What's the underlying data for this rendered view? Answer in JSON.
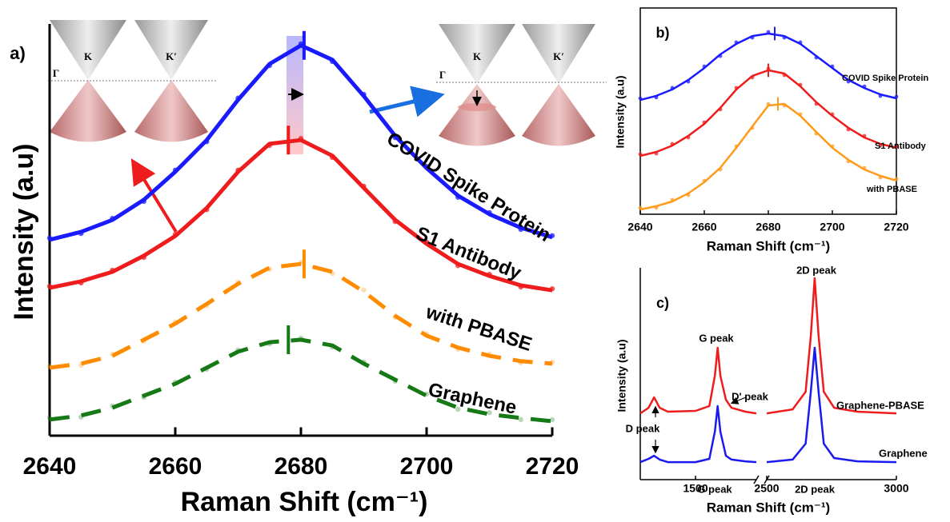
{
  "chart_data": [
    {
      "type": "line",
      "panel_label": "a)",
      "x_label": "Raman Shift (cm⁻¹)",
      "y_label": "Intensity (a.u)",
      "xlim": [
        2640,
        2720
      ],
      "xticks": [
        2640,
        2660,
        2680,
        2700,
        2720
      ],
      "ylim": [
        0,
        10
      ],
      "markers": true,
      "inset_labels": [
        "K",
        "K′",
        "Γ"
      ],
      "x": [
        2640,
        2645,
        2650,
        2655,
        2660,
        2665,
        2670,
        2675,
        2680,
        2685,
        2690,
        2695,
        2700,
        2705,
        2710,
        2715,
        2720
      ],
      "series": [
        {
          "name": "COVID Spike Protein",
          "color": "#1a1aff",
          "line_style": "solid",
          "peak": 2680.5,
          "values": [
            4.76,
            4.95,
            5.24,
            5.73,
            6.41,
            7.18,
            8.16,
            9.03,
            9.48,
            9.13,
            8.25,
            7.28,
            6.5,
            5.83,
            5.38,
            5.05,
            4.82
          ]
        },
        {
          "name": "S1 Antibody",
          "color": "#ee1c1c",
          "line_style": "solid",
          "peak": 2678,
          "values": [
            3.59,
            3.75,
            3.98,
            4.37,
            4.85,
            5.53,
            6.41,
            7.09,
            7.18,
            6.8,
            6.02,
            5.24,
            4.66,
            4.17,
            3.88,
            3.65,
            3.53
          ]
        },
        {
          "name": "with PBASE",
          "color": "#ff8c00",
          "line_style": "dashed",
          "peak": 2680.5,
          "values": [
            1.65,
            1.75,
            1.94,
            2.33,
            2.72,
            3.2,
            3.69,
            4.08,
            4.17,
            3.98,
            3.5,
            2.91,
            2.43,
            2.14,
            1.94,
            1.81,
            1.75
          ]
        },
        {
          "name": "Graphene",
          "color": "#157a15",
          "line_style": "dashed",
          "peak": 2678,
          "values": [
            0.39,
            0.49,
            0.68,
            0.97,
            1.26,
            1.65,
            2.04,
            2.27,
            2.33,
            2.19,
            1.75,
            1.36,
            0.97,
            0.68,
            0.52,
            0.43,
            0.35
          ]
        }
      ]
    },
    {
      "type": "line",
      "panel_label": "b)",
      "x_label": "Raman Shift (cm⁻¹)",
      "y_label": "Intensity (a.u)",
      "xlim": [
        2640,
        2720
      ],
      "xticks": [
        2640,
        2660,
        2680,
        2700,
        2720
      ],
      "ylim": [
        0,
        10
      ],
      "markers": true,
      "x": [
        2640,
        2645,
        2650,
        2655,
        2660,
        2665,
        2670,
        2675,
        2680,
        2685,
        2690,
        2695,
        2700,
        2705,
        2710,
        2715,
        2720
      ],
      "series": [
        {
          "name": "COVID Spike Protein",
          "color": "#1a1aff",
          "line_style": "solid",
          "peak": 2682,
          "values": [
            5.54,
            5.74,
            6.05,
            6.51,
            7.09,
            7.75,
            8.26,
            8.64,
            8.76,
            8.64,
            8.26,
            7.67,
            7.09,
            6.51,
            6.12,
            5.81,
            5.62
          ]
        },
        {
          "name": "S1 Antibody",
          "color": "#ee1c1c",
          "line_style": "solid",
          "peak": 2680,
          "values": [
            2.83,
            3.02,
            3.33,
            3.8,
            4.38,
            5.16,
            6.05,
            6.71,
            6.98,
            6.82,
            6.2,
            5.43,
            4.77,
            4.19,
            3.72,
            3.41,
            3.22
          ]
        },
        {
          "name": "with PBASE",
          "color": "#ff9a1a",
          "line_style": "solid",
          "peak": 2683,
          "values": [
            0.23,
            0.39,
            0.62,
            1.01,
            1.55,
            2.25,
            3.22,
            4.26,
            5.27,
            5.35,
            4.77,
            3.99,
            3.22,
            2.64,
            2.17,
            1.86,
            1.63
          ]
        }
      ]
    },
    {
      "type": "line",
      "panel_label": "c)",
      "x_label": "Raman Shift (cm⁻¹)",
      "y_label": "Intensity (a.u)",
      "xlim": [
        1300,
        3000
      ],
      "xbreak": [
        1720,
        2500
      ],
      "xticks": [
        1500,
        2500,
        3000
      ],
      "ylim": [
        0,
        11
      ],
      "markers": false,
      "annotations": [
        "G peak",
        "2D peak",
        "D' peak",
        "D peak",
        "G peak",
        "2D peak"
      ],
      "x": [
        1300,
        1330,
        1350,
        1370,
        1400,
        1500,
        1550,
        1570,
        1580,
        1590,
        1610,
        1630,
        1680,
        1720,
        2000,
        2500,
        2600,
        2650,
        2670,
        2685,
        2700,
        2720,
        2760,
        2850,
        3000
      ],
      "series": [
        {
          "name": "Graphene-PBASE",
          "color": "#ee1c1c",
          "line_style": "solid",
          "values": [
            3.44,
            3.73,
            4.27,
            3.73,
            3.53,
            3.57,
            3.82,
            5.39,
            6.85,
            5.39,
            4.15,
            3.73,
            3.53,
            3.44,
            null,
            3.44,
            3.65,
            4.56,
            7.47,
            10.46,
            7.47,
            4.56,
            3.73,
            3.53,
            3.44
          ]
        },
        {
          "name": "Graphene",
          "color": "#1a1aee",
          "line_style": "solid",
          "values": [
            0.91,
            1.08,
            1.24,
            1.04,
            0.91,
            0.91,
            1.08,
            2.49,
            3.82,
            2.49,
            1.24,
            1.04,
            0.95,
            0.91,
            null,
            0.91,
            1.04,
            1.87,
            4.56,
            6.85,
            4.56,
            1.87,
            1.12,
            0.95,
            0.91
          ]
        }
      ]
    }
  ]
}
